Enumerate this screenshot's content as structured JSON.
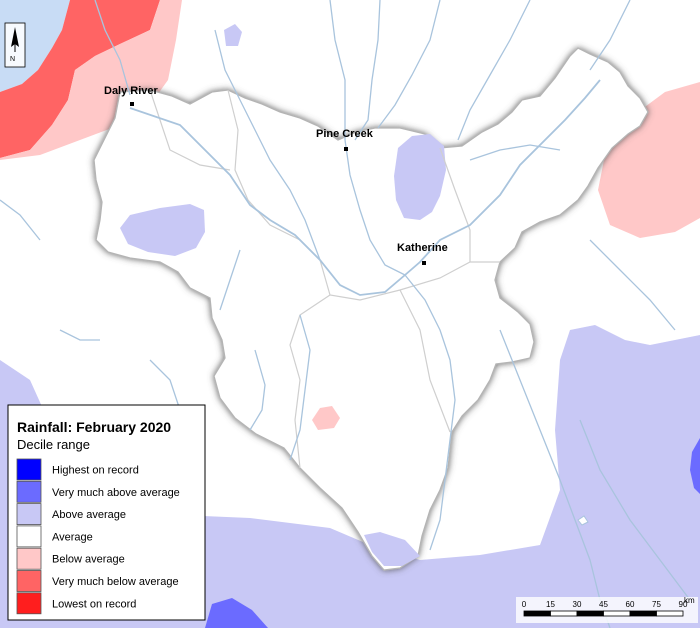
{
  "legend": {
    "title": "Rainfall: February 2020",
    "subtitle": "Decile range",
    "items": [
      {
        "label": "Highest on record",
        "color": "#0000ff"
      },
      {
        "label": "Very much above average",
        "color": "#6b6bff"
      },
      {
        "label": "Above average",
        "color": "#c8c8f5"
      },
      {
        "label": "Average",
        "color": "#ffffff"
      },
      {
        "label": "Below average",
        "color": "#ffc8c8"
      },
      {
        "label": "Very much below average",
        "color": "#ff6464"
      },
      {
        "label": "Lowest on record",
        "color": "#ff1e1e"
      }
    ]
  },
  "towns": [
    {
      "name": "Daly River"
    },
    {
      "name": "Pine Creek"
    },
    {
      "name": "Katherine"
    }
  ],
  "scale_bar": {
    "ticks": [
      "0",
      "15",
      "30",
      "45",
      "60",
      "75",
      "90"
    ],
    "unit": "km"
  },
  "north_arrow": {
    "label": "N",
    "icon": "north-arrow-icon"
  },
  "colors": {
    "water": "#c8dcf5",
    "river": "#a9c4dd",
    "basin_outline": "#b4b4b4"
  }
}
